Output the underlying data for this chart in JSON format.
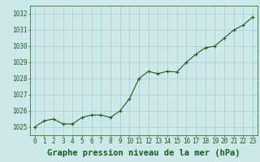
{
  "x": [
    0,
    1,
    2,
    3,
    4,
    5,
    6,
    7,
    8,
    9,
    10,
    11,
    12,
    13,
    14,
    15,
    16,
    17,
    18,
    19,
    20,
    21,
    22,
    23
  ],
  "y": [
    1025.0,
    1025.4,
    1025.5,
    1025.2,
    1025.2,
    1025.6,
    1025.75,
    1025.75,
    1025.6,
    1026.0,
    1026.75,
    1028.0,
    1028.45,
    1028.3,
    1028.45,
    1028.4,
    1029.0,
    1029.5,
    1029.9,
    1030.0,
    1030.5,
    1031.0,
    1031.3,
    1031.8
  ],
  "xlim": [
    -0.5,
    23.5
  ],
  "ylim": [
    1024.5,
    1032.5
  ],
  "yticks": [
    1025,
    1026,
    1027,
    1028,
    1029,
    1030,
    1031,
    1032
  ],
  "xticks": [
    0,
    1,
    2,
    3,
    4,
    5,
    6,
    7,
    8,
    9,
    10,
    11,
    12,
    13,
    14,
    15,
    16,
    17,
    18,
    19,
    20,
    21,
    22,
    23
  ],
  "xlabel": "Graphe pression niveau de la mer (hPa)",
  "line_color": "#1a5c1a",
  "marker_color": "#1a5c1a",
  "bg_color": "#cce8e8",
  "grid_color": "#a8cccc",
  "xlabel_color": "#1a5c1a",
  "tick_color": "#1a5c1a",
  "tick_fontsize": 5.5,
  "xlabel_fontsize": 7.5
}
